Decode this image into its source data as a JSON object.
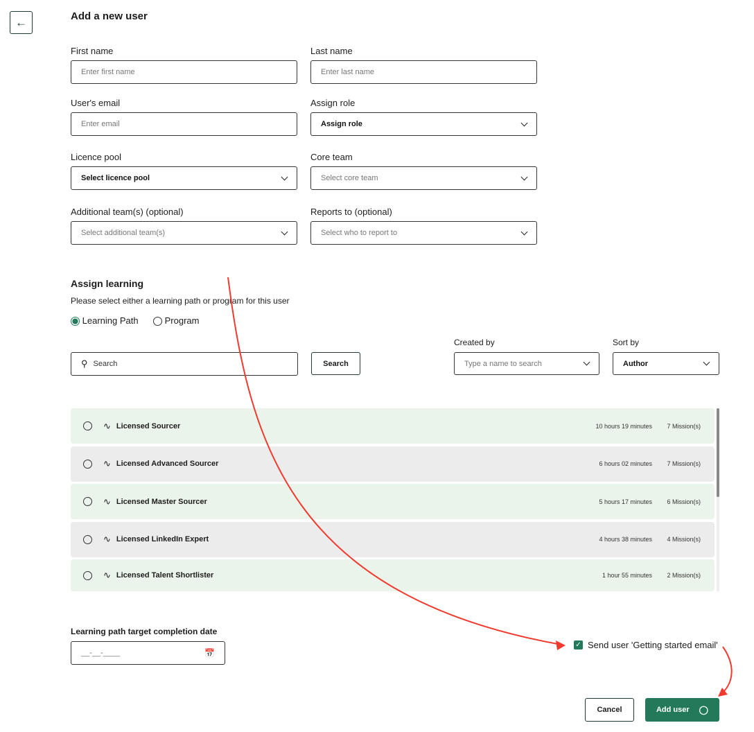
{
  "title": "Add a new user",
  "fields": {
    "first_name": {
      "label": "First name",
      "placeholder": "Enter first name"
    },
    "last_name": {
      "label": "Last name",
      "placeholder": "Enter last name"
    },
    "email": {
      "label": "User's email",
      "placeholder": "Enter email"
    },
    "role": {
      "label": "Assign role",
      "value": "Assign role"
    },
    "licence_pool": {
      "label": "Licence pool",
      "value": "Select licence pool"
    },
    "core_team": {
      "label": "Core team",
      "value": "Select core team"
    },
    "additional_teams": {
      "label": "Additional team(s) (optional)",
      "value": "Select additional team(s)"
    },
    "reports_to": {
      "label": "Reports to (optional)",
      "value": "Select who to report to"
    }
  },
  "learning": {
    "title": "Assign learning",
    "subtitle": "Please select either a learning path or program for this user",
    "options": [
      {
        "label": "Learning Path",
        "selected": true
      },
      {
        "label": "Program",
        "selected": false
      }
    ],
    "search_placeholder": "Search",
    "search_button": "Search",
    "created_by": {
      "label": "Created by",
      "placeholder": "Type a name to search"
    },
    "sort_by": {
      "label": "Sort by",
      "value": "Author"
    },
    "items": [
      {
        "name": "Licensed Sourcer",
        "duration": "10 hours 19 minutes",
        "missions": "7 Mission(s)"
      },
      {
        "name": "Licensed Advanced Sourcer",
        "duration": "6 hours 02 minutes",
        "missions": "7 Mission(s)"
      },
      {
        "name": "Licensed Master Sourcer",
        "duration": "5 hours 17 minutes",
        "missions": "6 Mission(s)"
      },
      {
        "name": "Licensed LinkedIn Expert",
        "duration": "4 hours 38 minutes",
        "missions": "4 Mission(s)"
      },
      {
        "name": "Licensed Talent Shortlister",
        "duration": "1 hour 55 minutes",
        "missions": "2 Mission(s)"
      }
    ]
  },
  "target_date": {
    "label": "Learning path target completion date",
    "placeholder": "__-__-____"
  },
  "send_email": {
    "label": "Send user 'Getting started email'",
    "checked": true
  },
  "buttons": {
    "cancel": "Cancel",
    "add_user": "Add user"
  },
  "colors": {
    "accent": "#237a5b",
    "row_even": "#eaf4ea",
    "row_odd": "#ececec",
    "annotation": "#f03a2e"
  }
}
